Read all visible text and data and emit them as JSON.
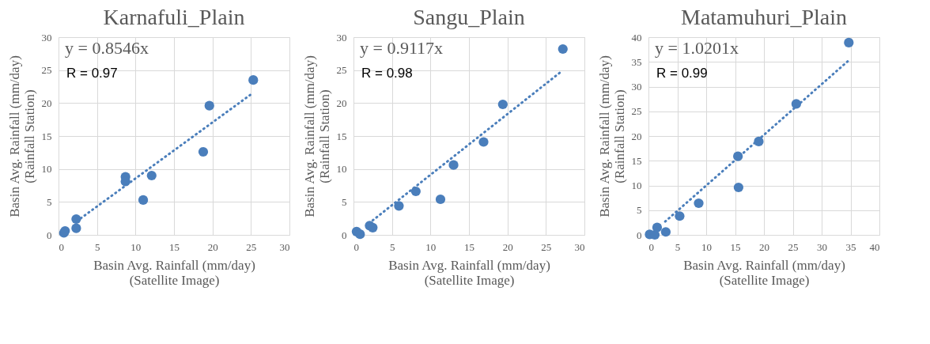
{
  "chart_data": [
    {
      "type": "scatter",
      "title": "Karnafuli_Plain",
      "xlabel": "Basin Avg. Rainfall (mm/day)\n(Satellite Image)",
      "ylabel": "Basin Avg. Rainfall (mm/day)\n(Rainfall Station)",
      "xlim": [
        0,
        30
      ],
      "ylim": [
        0,
        30
      ],
      "xticks": [
        0,
        5,
        10,
        15,
        20,
        25,
        30
      ],
      "yticks": [
        0,
        5,
        10,
        15,
        20,
        25,
        30
      ],
      "grid": true,
      "annotations": [
        "y = 0.8546x",
        "R = 0.97"
      ],
      "series": [
        {
          "type": "scatter",
          "marker": "circle",
          "color": "#4a7ebb",
          "x": [
            0.7,
            0.85,
            2.3,
            2.3,
            8.7,
            8.7,
            12.1,
            11.0,
            18.8,
            19.6,
            25.3
          ],
          "values": [
            0.3,
            0.6,
            2.4,
            1.0,
            8.8,
            8.1,
            9.0,
            5.3,
            12.6,
            19.6,
            23.5
          ]
        },
        {
          "type": "line",
          "color": "#4a7ebb",
          "line_style": "dotted",
          "x": [
            2.4,
            25.1
          ],
          "values": [
            2.1,
            21.4
          ]
        }
      ]
    },
    {
      "type": "scatter",
      "title": "Sangu_Plain",
      "xlabel": "Basin Avg. Rainfall (mm/day)\n(Satellite Image)",
      "ylabel": "Basin Avg. Rainfall (mm/day)\n(Rainfall Station)",
      "xlim": [
        0,
        30
      ],
      "ylim": [
        0,
        30
      ],
      "xticks": [
        0,
        5,
        10,
        15,
        20,
        25,
        30
      ],
      "yticks": [
        0,
        5,
        10,
        15,
        20,
        25,
        30
      ],
      "grid": true,
      "annotations": [
        "y = 0.9117x",
        "R = 0.98"
      ],
      "series": [
        {
          "type": "scatter",
          "marker": "circle",
          "color": "#4a7ebb",
          "x": [
            0.4,
            0.85,
            2.1,
            2.5,
            5.9,
            8.1,
            11.3,
            13.0,
            16.9,
            19.4,
            27.2
          ],
          "values": [
            0.5,
            0.1,
            1.4,
            1.1,
            4.4,
            6.6,
            5.4,
            10.6,
            14.1,
            19.8,
            28.2
          ]
        },
        {
          "type": "line",
          "color": "#4a7ebb",
          "line_style": "dotted",
          "x": [
            2.5,
            26.8
          ],
          "values": [
            2.2,
            24.6
          ]
        }
      ]
    },
    {
      "type": "scatter",
      "title": "Matamuhuri_Plain",
      "xlabel": "Basin Avg. Rainfall (mm/day)\n(Satellite Image)",
      "ylabel": "Basin Avg. Rainfall (mm/day)\n(Rainfall Station)",
      "xlim": [
        0,
        40
      ],
      "ylim": [
        0,
        40
      ],
      "xticks": [
        0,
        5,
        10,
        15,
        20,
        25,
        30,
        35,
        40
      ],
      "yticks": [
        0,
        5,
        10,
        15,
        20,
        25,
        30,
        35,
        40
      ],
      "grid": true,
      "annotations": [
        "y = 1.0201x",
        "R = 0.99"
      ],
      "series": [
        {
          "type": "scatter",
          "marker": "circle",
          "color": "#4a7ebb",
          "x": [
            0.2,
            1.1,
            1.5,
            3.0,
            5.4,
            8.7,
            15.5,
            15.6,
            19.1,
            25.6,
            34.7
          ],
          "values": [
            0.1,
            0.0,
            1.5,
            0.6,
            3.8,
            6.4,
            15.9,
            9.6,
            18.9,
            26.5,
            38.9
          ]
        },
        {
          "type": "line",
          "color": "#4a7ebb",
          "line_style": "dotted",
          "x": [
            2.9,
            34.5
          ],
          "values": [
            2.7,
            35.1
          ]
        }
      ]
    }
  ]
}
